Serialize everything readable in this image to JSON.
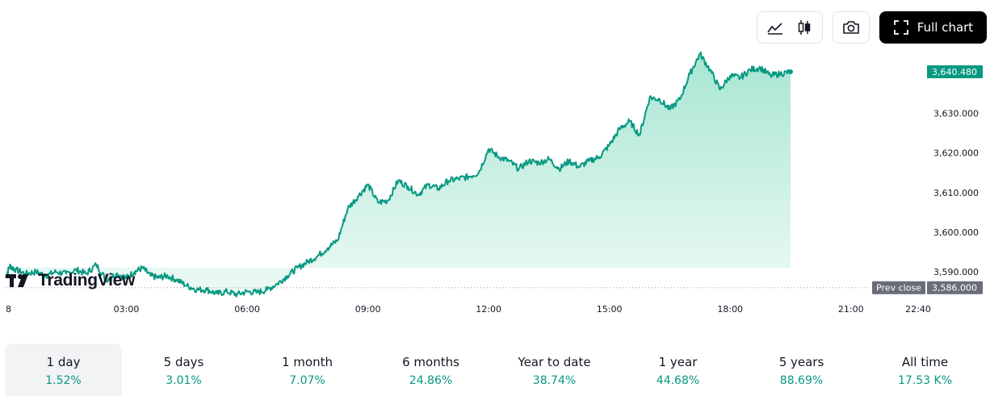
{
  "toolbar": {
    "line_icon": "area-line-chart-icon",
    "candle_icon": "candlestick-icon",
    "camera_icon": "camera-icon",
    "fullscreen_icon": "fullscreen-icon",
    "full_chart_label": "Full chart"
  },
  "logo": {
    "text": "TradingView",
    "icon": "tradingview-logo-icon"
  },
  "colors": {
    "line": "#089981",
    "fill_top": "#a7e6d2",
    "fill_bottom": "#eefaf6",
    "badge_gray": "#6a6d78"
  },
  "chart_data": {
    "type": "area",
    "x_tick_labels": [
      "8",
      "03:00",
      "06:00",
      "09:00",
      "12:00",
      "15:00",
      "18:00",
      "21:00",
      "22:40"
    ],
    "y_tick_labels": [
      "3,590.000",
      "3,600.000",
      "3,610.000",
      "3,620.000",
      "3,630.000"
    ],
    "ylim": [
      3583.5,
      3647
    ],
    "y_ticks": [
      3590,
      3600,
      3610,
      3620,
      3630
    ],
    "x_hours_range": [
      0,
      22.67
    ],
    "last_price": 3640.48,
    "last_price_label": "3,640.480",
    "prev_close": 3586.0,
    "prev_close_label": "3,586.000",
    "prev_close_text": "Prev close",
    "series": [
      {
        "x": [
          0,
          0.1,
          0.25,
          0.5,
          0.75,
          1.0,
          1.25,
          1.5,
          1.75,
          2.0,
          2.25,
          2.5,
          2.75,
          3.0,
          3.2,
          3.4,
          3.6,
          3.8,
          4.0,
          4.25,
          4.5,
          4.75,
          5.0,
          5.25,
          5.5,
          5.75,
          6.0,
          6.25,
          6.5,
          6.75,
          7.0,
          7.25,
          7.5,
          7.75,
          8.0,
          8.25,
          8.5,
          8.75,
          9.0,
          9.25,
          9.5,
          9.75,
          10.0,
          10.25,
          10.5,
          10.75,
          11.0,
          11.25,
          11.5,
          11.75,
          12.0,
          12.25,
          12.5,
          12.75,
          13.0,
          13.25,
          13.5,
          13.75,
          14.0,
          14.25,
          14.5,
          14.75,
          15.0,
          15.25,
          15.5,
          15.75,
          16.0,
          16.25,
          16.5,
          16.75,
          17.0,
          17.25,
          17.5,
          17.75,
          18.0,
          18.25,
          18.5,
          18.75,
          19.0,
          19.25,
          19.5
        ],
        "y": [
          3588.5,
          3591.5,
          3590.5,
          3589.5,
          3590.0,
          3589.0,
          3590.0,
          3589.5,
          3590.5,
          3589.5,
          3591.8,
          3588.0,
          3589.5,
          3588.5,
          3590.0,
          3591.0,
          3589.0,
          3588.5,
          3589.0,
          3588.0,
          3586.5,
          3585.5,
          3585.5,
          3584.5,
          3585.0,
          3584.3,
          3585.0,
          3584.8,
          3585.5,
          3587.0,
          3589.0,
          3591.0,
          3592.5,
          3594.0,
          3596.0,
          3598.0,
          3606.0,
          3609.0,
          3612.0,
          3607.5,
          3608.0,
          3613.0,
          3611.5,
          3609.5,
          3612.0,
          3611.0,
          3613.0,
          3613.5,
          3614.0,
          3615.0,
          3621.0,
          3619.0,
          3618.0,
          3616.0,
          3618.0,
          3617.5,
          3618.5,
          3616.0,
          3618.0,
          3616.5,
          3618.0,
          3619.0,
          3622.0,
          3626.0,
          3628.0,
          3624.5,
          3634.0,
          3633.5,
          3631.0,
          3633.5,
          3640.0,
          3645.0,
          3641.0,
          3636.0,
          3639.5,
          3639.0,
          3641.0,
          3641.5,
          3639.5,
          3640.0,
          3640.48
        ]
      }
    ]
  },
  "periods": [
    {
      "label": "1 day",
      "value": "1.52%"
    },
    {
      "label": "5 days",
      "value": "3.01%"
    },
    {
      "label": "1 month",
      "value": "7.07%"
    },
    {
      "label": "6 months",
      "value": "24.86%"
    },
    {
      "label": "Year to date",
      "value": "38.74%"
    },
    {
      "label": "1 year",
      "value": "44.68%"
    },
    {
      "label": "5 years",
      "value": "88.69%"
    },
    {
      "label": "All time",
      "value": "17.53 K%"
    }
  ]
}
